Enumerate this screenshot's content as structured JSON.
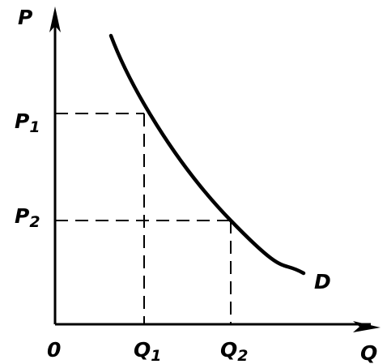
{
  "axes": {
    "y_label": "P",
    "x_label": "Q",
    "origin": "0"
  },
  "price_levels": [
    {
      "base": "P",
      "sub": "1"
    },
    {
      "base": "P",
      "sub": "2"
    }
  ],
  "quantity_levels": [
    {
      "base": "Q",
      "sub": "1"
    },
    {
      "base": "Q",
      "sub": "2"
    }
  ],
  "curve_label": "D"
}
